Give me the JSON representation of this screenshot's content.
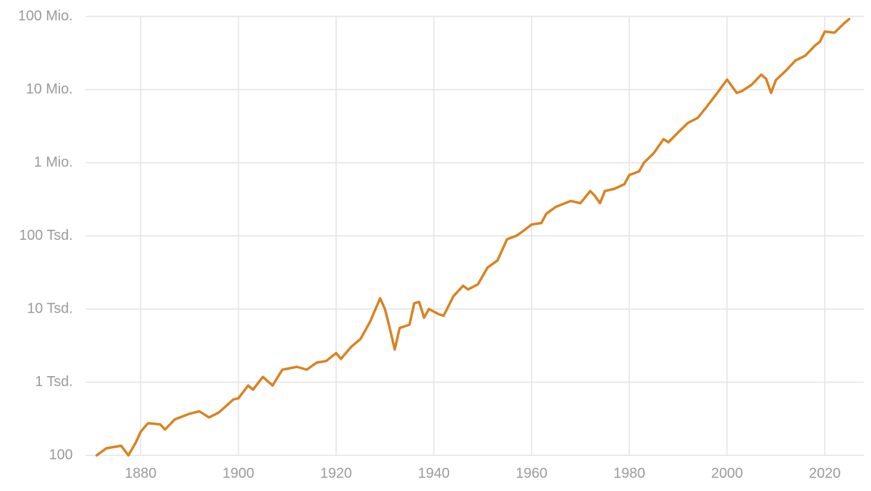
{
  "chart_data": {
    "type": "line",
    "x": [
      1871,
      1873,
      1876,
      1877.5,
      1879,
      1880,
      1881.5,
      1884,
      1885,
      1887,
      1890,
      1892,
      1894,
      1896,
      1899,
      1900,
      1902,
      1903,
      1905,
      1907,
      1909,
      1912,
      1914,
      1916,
      1918,
      1920,
      1921,
      1923,
      1925,
      1927,
      1929,
      1930,
      1931,
      1932,
      1933,
      1935,
      1936,
      1937,
      1938,
      1939,
      1941,
      1942,
      1944,
      1946,
      1947,
      1949,
      1951,
      1953,
      1955,
      1957,
      1958,
      1960,
      1962,
      1963,
      1965,
      1968,
      1970,
      1972,
      1973,
      1974,
      1975,
      1977,
      1979,
      1980,
      1982,
      1983,
      1985,
      1987,
      1988,
      1990,
      1992,
      1994,
      1996,
      1998,
      2000,
      2002,
      2003,
      2005,
      2007,
      2008,
      2009,
      2010,
      2012,
      2014,
      2016,
      2018,
      2019,
      2020,
      2022,
      2024,
      2025
    ],
    "series": [
      {
        "color": "#d98322",
        "values": [
          100,
          125,
          135,
          100,
          150,
          210,
          275,
          265,
          225,
          310,
          370,
          400,
          330,
          385,
          580,
          600,
          900,
          790,
          1180,
          900,
          1480,
          1620,
          1480,
          1850,
          1950,
          2500,
          2080,
          3000,
          3900,
          6800,
          14000,
          10000,
          5400,
          2800,
          5500,
          6100,
          12000,
          12500,
          7600,
          10000,
          8500,
          8100,
          15000,
          20800,
          18500,
          21700,
          37000,
          46000,
          90000,
          101000,
          113000,
          143000,
          150000,
          200000,
          250000,
          300000,
          280000,
          410000,
          350000,
          280000,
          410000,
          440000,
          510000,
          680000,
          760000,
          1000000,
          1350000,
          2100000,
          1900000,
          2600000,
          3500000,
          4100000,
          6000000,
          9000000,
          13700000,
          9000000,
          9500000,
          11600000,
          16000000,
          14000000,
          9000000,
          13500000,
          18000000,
          25000000,
          29000000,
          40000000,
          45000000,
          62000000,
          60000000,
          81000000,
          92000000
        ]
      }
    ],
    "xlim": [
      1868.75,
      2028
    ],
    "xticks": [
      1880,
      1900,
      1920,
      1940,
      1960,
      1980,
      2000,
      2020
    ],
    "ylim": [
      100,
      100000000
    ],
    "yticks": [
      100,
      {
        "value": 1000,
        "label": "1 Tsd."
      },
      {
        "value": 10000,
        "label": "10 Tsd."
      },
      {
        "value": 100000,
        "label": "100 Tsd."
      },
      {
        "value": 1000000,
        "label": "1 Mio."
      },
      {
        "value": 10000000,
        "label": "10 Mio."
      },
      {
        "value": 100000000,
        "label": "100 Mio."
      }
    ],
    "log_y": true,
    "grid": true
  }
}
